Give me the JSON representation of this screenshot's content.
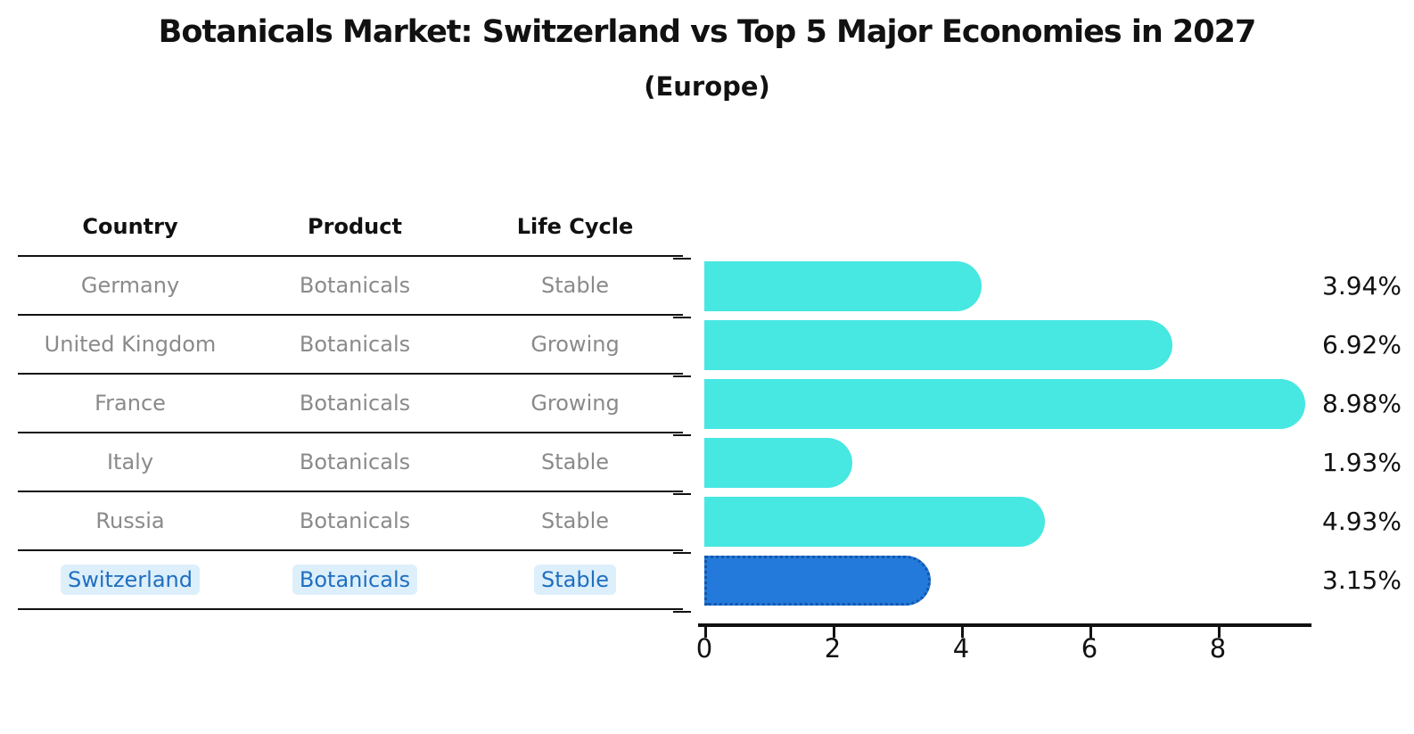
{
  "title": "Botanicals Market: Switzerland vs Top 5 Major Economies in 2027",
  "subtitle": "(Europe)",
  "table": {
    "headers": {
      "country": "Country",
      "product": "Product",
      "life_cycle": "Life Cycle"
    },
    "rows": [
      {
        "country": "Germany",
        "product": "Botanicals",
        "life_cycle": "Stable",
        "highlight": false
      },
      {
        "country": "United Kingdom",
        "product": "Botanicals",
        "life_cycle": "Growing",
        "highlight": false
      },
      {
        "country": "France",
        "product": "Botanicals",
        "life_cycle": "Growing",
        "highlight": false
      },
      {
        "country": "Italy",
        "product": "Botanicals",
        "life_cycle": "Stable",
        "highlight": false
      },
      {
        "country": "Russia",
        "product": "Botanicals",
        "life_cycle": "Stable",
        "highlight": true
      },
      {
        "country": "Switzerland",
        "product": "Botanicals",
        "life_cycle": "Stable",
        "highlight": true
      }
    ]
  },
  "chart_data": {
    "type": "bar",
    "orientation": "horizontal",
    "title": "Botanicals Market: Switzerland vs Top 5 Major Economies in 2027 (Europe)",
    "categories": [
      "Germany",
      "United Kingdom",
      "France",
      "Italy",
      "Russia",
      "Switzerland"
    ],
    "values": [
      3.94,
      6.92,
      8.98,
      1.93,
      4.93,
      3.15
    ],
    "value_labels": [
      "3.94%",
      "6.92%",
      "8.98%",
      "1.93%",
      "4.93%",
      "3.15%"
    ],
    "highlight_index": 5,
    "xticks": [
      0,
      2,
      4,
      6,
      8
    ],
    "xtick_labels": [
      "0",
      "2",
      "4",
      "6",
      "8"
    ],
    "xlim": [
      0,
      9.5
    ],
    "grid": false,
    "legend": false
  },
  "colors": {
    "bar_default": "#47e7e2",
    "bar_highlight": "#237adb",
    "bar_highlight_border": "#1256ae",
    "highlight_text": "#1f6fc0",
    "highlight_text_bg": "#ddeffb",
    "table_text": "#8a8a8a",
    "heading_text": "#111111",
    "background": "#ffffff"
  }
}
